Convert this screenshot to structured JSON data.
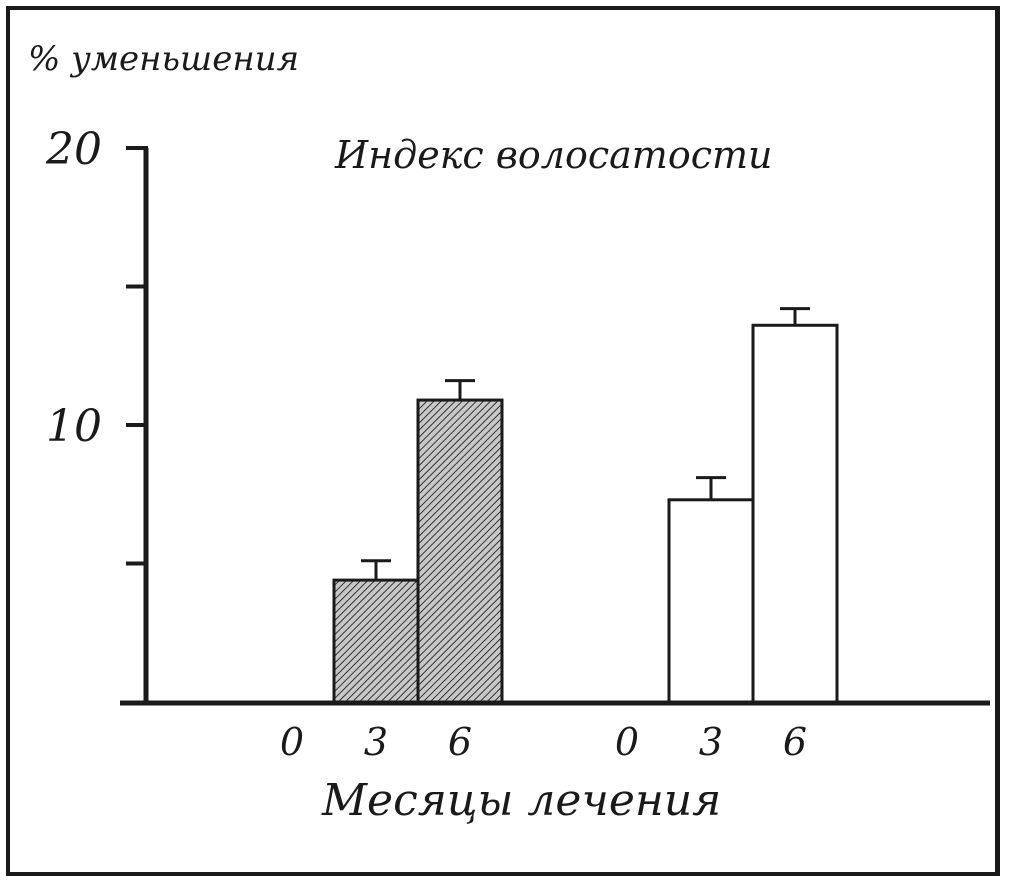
{
  "chart_data": {
    "type": "bar",
    "title": "Индекс волосатости",
    "ylabel": "% уменьшения",
    "xlabel": "Месяцы лечения",
    "ylim": [
      0,
      20
    ],
    "yticks": [
      5,
      10,
      15,
      20
    ],
    "ytick_labels": [
      "",
      "10",
      "",
      "20"
    ],
    "groups": [
      {
        "fill": "hatched",
        "categories": [
          "0",
          "3",
          "6"
        ],
        "values": [
          0,
          4.4,
          10.9
        ],
        "errors": [
          0,
          0.7,
          0.7
        ]
      },
      {
        "fill": "white",
        "categories": [
          "0",
          "3",
          "6"
        ],
        "values": [
          0,
          7.3,
          13.6
        ],
        "errors": [
          0,
          0.8,
          0.6
        ]
      }
    ],
    "grid": false,
    "colors": {
      "ink": "#1a1a1a",
      "hatch_fill": "#c8c8c8",
      "open_fill": "#ffffff"
    }
  }
}
